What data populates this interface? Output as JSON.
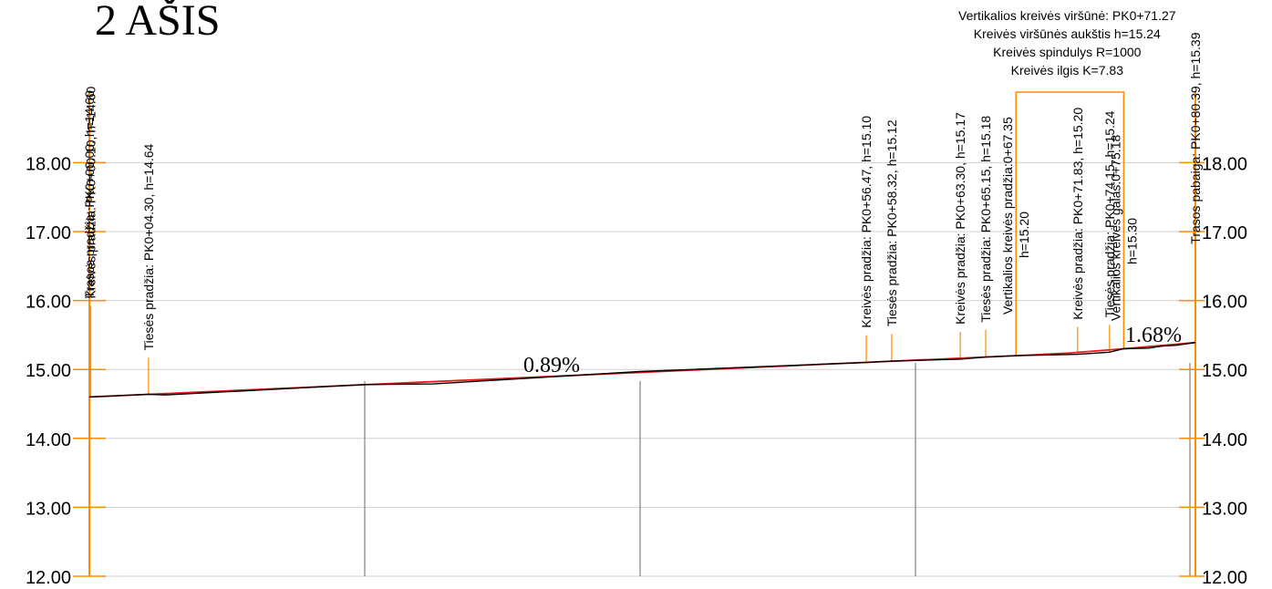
{
  "title": "2 AŠIS",
  "colors": {
    "frame": "#ff8c00",
    "design_line": "#e8191c",
    "ground_line": "#000000",
    "grid": "#d0d0d0",
    "station_line": "#808080"
  },
  "chart_data": {
    "type": "line",
    "title": "2 AŠIS",
    "ylim": [
      12.0,
      19.0
    ],
    "y_ticks": [
      "12.00",
      "13.00",
      "14.00",
      "15.00",
      "16.00",
      "17.00",
      "18.00"
    ],
    "grid": true,
    "grades": [
      {
        "text": "0.89%"
      },
      {
        "text": "1.68%"
      }
    ],
    "series": [
      {
        "key": "design",
        "x": [
          0.0,
          67.35,
          71.27,
          75.18,
          80.39
        ],
        "y": [
          14.6,
          15.2,
          15.24,
          15.3,
          15.39
        ]
      },
      {
        "key": "ground",
        "x": [
          0.0,
          4.3,
          5.5,
          20.0,
          25.0,
          30.0,
          40.0,
          50.0,
          56.47,
          58.32,
          63.3,
          65.15,
          67.35,
          71.83,
          74.15,
          75.18,
          77.0,
          78.0,
          79.0,
          80.39
        ],
        "y": [
          14.6,
          14.64,
          14.63,
          14.78,
          14.79,
          14.85,
          14.97,
          15.05,
          15.1,
          15.12,
          15.15,
          15.18,
          15.2,
          15.22,
          15.25,
          15.3,
          15.31,
          15.34,
          15.35,
          15.39
        ]
      }
    ],
    "labels": [
      {
        "x": 0.0,
        "y": 14.6,
        "text": "Trasos pradžia: PK0+00.00, h=14.60",
        "stem": 100
      },
      {
        "x": 0.1,
        "y": 14.6,
        "text": "Kreivės pradžia: PK0+00.10, h=14.60",
        "stem": 100
      },
      {
        "x": 4.3,
        "y": 14.64,
        "text": "Tiesės pradžia: PK0+04.30, h=14.64",
        "stem": 40
      },
      {
        "x": 56.47,
        "y": 15.1,
        "text": "Kreivės pradžia: PK0+56.47, h=15.10",
        "stem": 30
      },
      {
        "x": 58.32,
        "y": 15.12,
        "text": "Tiesės pradžia: PK0+58.32, h=15.12",
        "stem": 30
      },
      {
        "x": 63.3,
        "y": 15.15,
        "text": "Kreivės pradžia: PK0+63.30, h=15.17",
        "stem": 30
      },
      {
        "x": 65.15,
        "y": 15.18,
        "text": "Tiesės pradžia: PK0+65.15, h=15.18",
        "stem": 30
      },
      {
        "x": 71.83,
        "y": 15.22,
        "text": "Kreivės pradžia: PK0+71.83, h=15.20",
        "stem": 30
      },
      {
        "x": 74.15,
        "y": 15.25,
        "text": "Tiesės pradžia: PK0+74.15, h=15.24",
        "stem": 30
      },
      {
        "x": 80.39,
        "y": 15.39,
        "text": "Trasos pabaiga: PK0+80.39, h=15.39",
        "stem": 100
      }
    ],
    "vertical_curve": {
      "start_text": "Vertikalios kreivės pradžia:0+67.35",
      "start_h": "h=15.20",
      "end_text": "Vertikalios kreivės galas:0+75.18",
      "end_h": "h=15.30",
      "summary": [
        "Vertikalios kreivės viršūnė: PK0+71.27",
        "Kreivės viršūnės aukštis h=15.24",
        "Kreivės spindulys R=1000",
        "Kreivės ilgis K=7.83"
      ]
    }
  }
}
